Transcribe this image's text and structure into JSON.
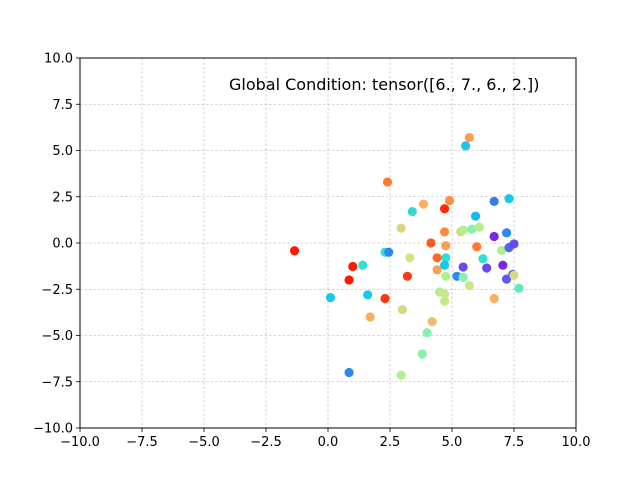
{
  "chart_data": {
    "type": "scatter",
    "annotation": "Global Condition: tensor([6., 7., 6., 2.])",
    "xlim": [
      -10,
      10
    ],
    "ylim": [
      -10,
      10
    ],
    "xticks": [
      -10,
      -7.5,
      -5,
      -2.5,
      0,
      2.5,
      5,
      7.5,
      10
    ],
    "yticks": [
      -10,
      -7.5,
      -5,
      -2.5,
      0,
      2.5,
      5,
      7.5,
      10
    ],
    "xtick_labels": [
      "−10.0",
      "−7.5",
      "−5.0",
      "−2.5",
      "0.0",
      "2.5",
      "5.0",
      "7.5",
      "10.0"
    ],
    "ytick_labels": [
      "−10.0",
      "−7.5",
      "−5.0",
      "−2.5",
      "0.0",
      "2.5",
      "5.0",
      "7.5",
      "10.0"
    ],
    "grid": true,
    "points": [
      {
        "x": -1.35,
        "y": -0.42,
        "color": "#ff1a00"
      },
      {
        "x": 0.85,
        "y": -2.0,
        "color": "#ff1a00"
      },
      {
        "x": 1.0,
        "y": -1.27,
        "color": "#ff1a00"
      },
      {
        "x": 0.1,
        "y": -2.95,
        "color": "#18c8e8"
      },
      {
        "x": 0.85,
        "y": -7.0,
        "color": "#2a8af0"
      },
      {
        "x": 1.4,
        "y": -1.2,
        "color": "#30e0d0"
      },
      {
        "x": 1.6,
        "y": -2.8,
        "color": "#18c8e8"
      },
      {
        "x": 1.7,
        "y": -4.0,
        "color": "#f8b060"
      },
      {
        "x": 2.3,
        "y": -0.5,
        "color": "#30e0d0"
      },
      {
        "x": 2.45,
        "y": -0.5,
        "color": "#2a8af0"
      },
      {
        "x": 2.3,
        "y": -3.0,
        "color": "#ff3a10"
      },
      {
        "x": 2.4,
        "y": 3.3,
        "color": "#ff7a30"
      },
      {
        "x": 2.95,
        "y": 0.8,
        "color": "#d8d880"
      },
      {
        "x": 3.0,
        "y": -3.6,
        "color": "#d8d880"
      },
      {
        "x": 2.95,
        "y": -7.15,
        "color": "#b0f090"
      },
      {
        "x": 3.2,
        "y": -1.8,
        "color": "#ff3a10"
      },
      {
        "x": 3.3,
        "y": -0.8,
        "color": "#d8e080"
      },
      {
        "x": 3.4,
        "y": 1.7,
        "color": "#30d8d8"
      },
      {
        "x": 3.8,
        "y": -6.0,
        "color": "#88f0a8"
      },
      {
        "x": 3.85,
        "y": 2.1,
        "color": "#f8b060"
      },
      {
        "x": 4.0,
        "y": -4.85,
        "color": "#88f0b0"
      },
      {
        "x": 4.15,
        "y": 0.0,
        "color": "#ff5a20"
      },
      {
        "x": 4.2,
        "y": -4.25,
        "color": "#e8c070"
      },
      {
        "x": 4.4,
        "y": -0.8,
        "color": "#ff6a28"
      },
      {
        "x": 4.4,
        "y": -1.45,
        "color": "#f8a050"
      },
      {
        "x": 4.5,
        "y": -2.65,
        "color": "#b0f090"
      },
      {
        "x": 4.7,
        "y": -2.75,
        "color": "#c8e888"
      },
      {
        "x": 4.7,
        "y": -3.15,
        "color": "#c8e888"
      },
      {
        "x": 4.7,
        "y": 1.85,
        "color": "#ff2a08"
      },
      {
        "x": 4.7,
        "y": 0.6,
        "color": "#ff8a40"
      },
      {
        "x": 4.75,
        "y": -0.15,
        "color": "#f8a050"
      },
      {
        "x": 4.75,
        "y": -0.8,
        "color": "#30e0d0"
      },
      {
        "x": 4.7,
        "y": -1.2,
        "color": "#18c8e8"
      },
      {
        "x": 4.75,
        "y": -1.8,
        "color": "#b0f090"
      },
      {
        "x": 4.9,
        "y": 2.3,
        "color": "#ff8a40"
      },
      {
        "x": 5.2,
        "y": -1.8,
        "color": "#2a8af0"
      },
      {
        "x": 5.35,
        "y": 0.6,
        "color": "#d8d880"
      },
      {
        "x": 5.45,
        "y": 0.7,
        "color": "#b0f090"
      },
      {
        "x": 5.45,
        "y": -1.3,
        "color": "#6a48f0"
      },
      {
        "x": 5.45,
        "y": -1.85,
        "color": "#88f0b0"
      },
      {
        "x": 5.55,
        "y": 5.25,
        "color": "#18c8e8"
      },
      {
        "x": 5.7,
        "y": 5.7,
        "color": "#f8a050"
      },
      {
        "x": 5.7,
        "y": -2.3,
        "color": "#c8e888"
      },
      {
        "x": 5.8,
        "y": 0.75,
        "color": "#88f0b0"
      },
      {
        "x": 5.95,
        "y": 1.45,
        "color": "#18b8f0"
      },
      {
        "x": 6.0,
        "y": -0.2,
        "color": "#ff7a30"
      },
      {
        "x": 6.1,
        "y": 0.85,
        "color": "#b0f090"
      },
      {
        "x": 6.25,
        "y": -0.85,
        "color": "#30e0d0"
      },
      {
        "x": 6.4,
        "y": -1.35,
        "color": "#6a48f0"
      },
      {
        "x": 6.7,
        "y": -3.0,
        "color": "#f8b060"
      },
      {
        "x": 6.7,
        "y": 0.35,
        "color": "#7a28e8"
      },
      {
        "x": 6.7,
        "y": 2.25,
        "color": "#3a7af0"
      },
      {
        "x": 7.0,
        "y": -0.4,
        "color": "#b0f090"
      },
      {
        "x": 7.05,
        "y": -1.2,
        "color": "#7a28e8"
      },
      {
        "x": 7.2,
        "y": -1.95,
        "color": "#5a58f0"
      },
      {
        "x": 7.2,
        "y": 0.55,
        "color": "#2a8af0"
      },
      {
        "x": 7.3,
        "y": 2.4,
        "color": "#18c8e8"
      },
      {
        "x": 7.3,
        "y": -0.25,
        "color": "#4a68f0"
      },
      {
        "x": 7.45,
        "y": -1.7,
        "color": "#4a68f0"
      },
      {
        "x": 7.5,
        "y": -1.75,
        "color": "#d8d880"
      },
      {
        "x": 7.5,
        "y": -0.05,
        "color": "#6a48f0"
      },
      {
        "x": 7.7,
        "y": -2.45,
        "color": "#60e8c0"
      }
    ]
  }
}
